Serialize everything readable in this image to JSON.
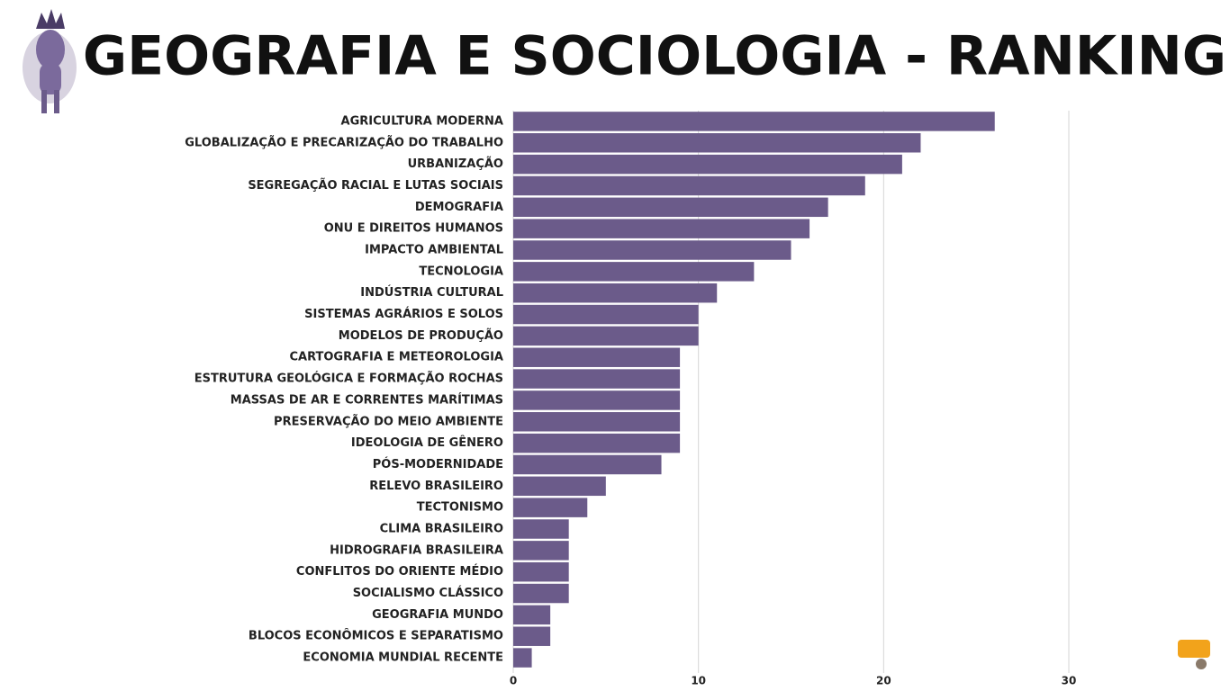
{
  "chart_data": {
    "type": "bar",
    "orientation": "horizontal",
    "title": "GEOGRAFIA E SOCIOLOGIA - RANKING",
    "categories": [
      "AGRICULTURA MODERNA",
      "GLOBALIZAÇÃO E PRECARIZAÇÃO DO TRABALHO",
      "URBANIZAÇÃO",
      "SEGREGAÇÃO RACIAL E LUTAS SOCIAIS",
      "DEMOGRAFIA",
      "ONU E DIREITOS HUMANOS",
      "IMPACTO AMBIENTAL",
      "TECNOLOGIA",
      "INDÚSTRIA CULTURAL",
      "SISTEMAS AGRÁRIOS E SOLOS",
      "MODELOS DE PRODUÇÃO",
      "CARTOGRAFIA E METEOROLOGIA",
      "ESTRUTURA GEOLÓGICA E FORMAÇÃO ROCHAS",
      "MASSAS DE AR E CORRENTES MARÍTIMAS",
      "PRESERVAÇÃO DO MEIO AMBIENTE",
      "IDEOLOGIA DE GÊNERO",
      "PÓS-MODERNIDADE",
      "RELEVO BRASILEIRO",
      "TECTONISMO",
      "CLIMA BRASILEIRO",
      "HIDROGRAFIA BRASILEIRA",
      "CONFLITOS DO ORIENTE MÉDIO",
      "SOCIALISMO CLÁSSICO",
      "GEOGRAFIA MUNDO",
      "BLOCOS ECONÔMICOS E SEPARATISMO",
      "ECONOMIA MUNDIAL RECENTE"
    ],
    "values": [
      26,
      22,
      21,
      19,
      17,
      16,
      15,
      13,
      11,
      10,
      10,
      9,
      9,
      9,
      9,
      9,
      8,
      5,
      4,
      3,
      3,
      3,
      3,
      2,
      2,
      1
    ],
    "color": "#6b5b8a",
    "xlim": [
      0,
      30
    ],
    "xticks": [
      0,
      10,
      20,
      30
    ],
    "grid": true
  }
}
